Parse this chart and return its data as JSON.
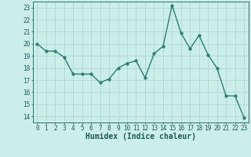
{
  "x": [
    0,
    1,
    2,
    3,
    4,
    5,
    6,
    7,
    8,
    9,
    10,
    11,
    12,
    13,
    14,
    15,
    16,
    17,
    18,
    19,
    20,
    21,
    22,
    23
  ],
  "y": [
    20.0,
    19.4,
    19.4,
    18.9,
    17.5,
    17.5,
    17.5,
    16.8,
    17.1,
    18.0,
    18.4,
    18.6,
    17.2,
    19.2,
    19.8,
    23.2,
    20.9,
    19.6,
    20.7,
    19.1,
    18.0,
    15.7,
    15.7,
    13.9
  ],
  "line_color": "#2d7d74",
  "marker_color": "#2d7d74",
  "bg_color": "#cceee8",
  "grid_color": "#aad4cc",
  "xlabel": "Humidex (Indice chaleur)",
  "xlim": [
    -0.5,
    23.5
  ],
  "ylim": [
    13.5,
    23.5
  ],
  "yticks": [
    14,
    15,
    16,
    17,
    18,
    19,
    20,
    21,
    22,
    23
  ],
  "xticks": [
    0,
    1,
    2,
    3,
    4,
    5,
    6,
    7,
    8,
    9,
    10,
    11,
    12,
    13,
    14,
    15,
    16,
    17,
    18,
    19,
    20,
    21,
    22,
    23
  ],
  "font_color": "#1a5a54",
  "linewidth": 1.0,
  "markersize": 2.5,
  "tick_fontsize": 5.5,
  "xlabel_fontsize": 7.0
}
